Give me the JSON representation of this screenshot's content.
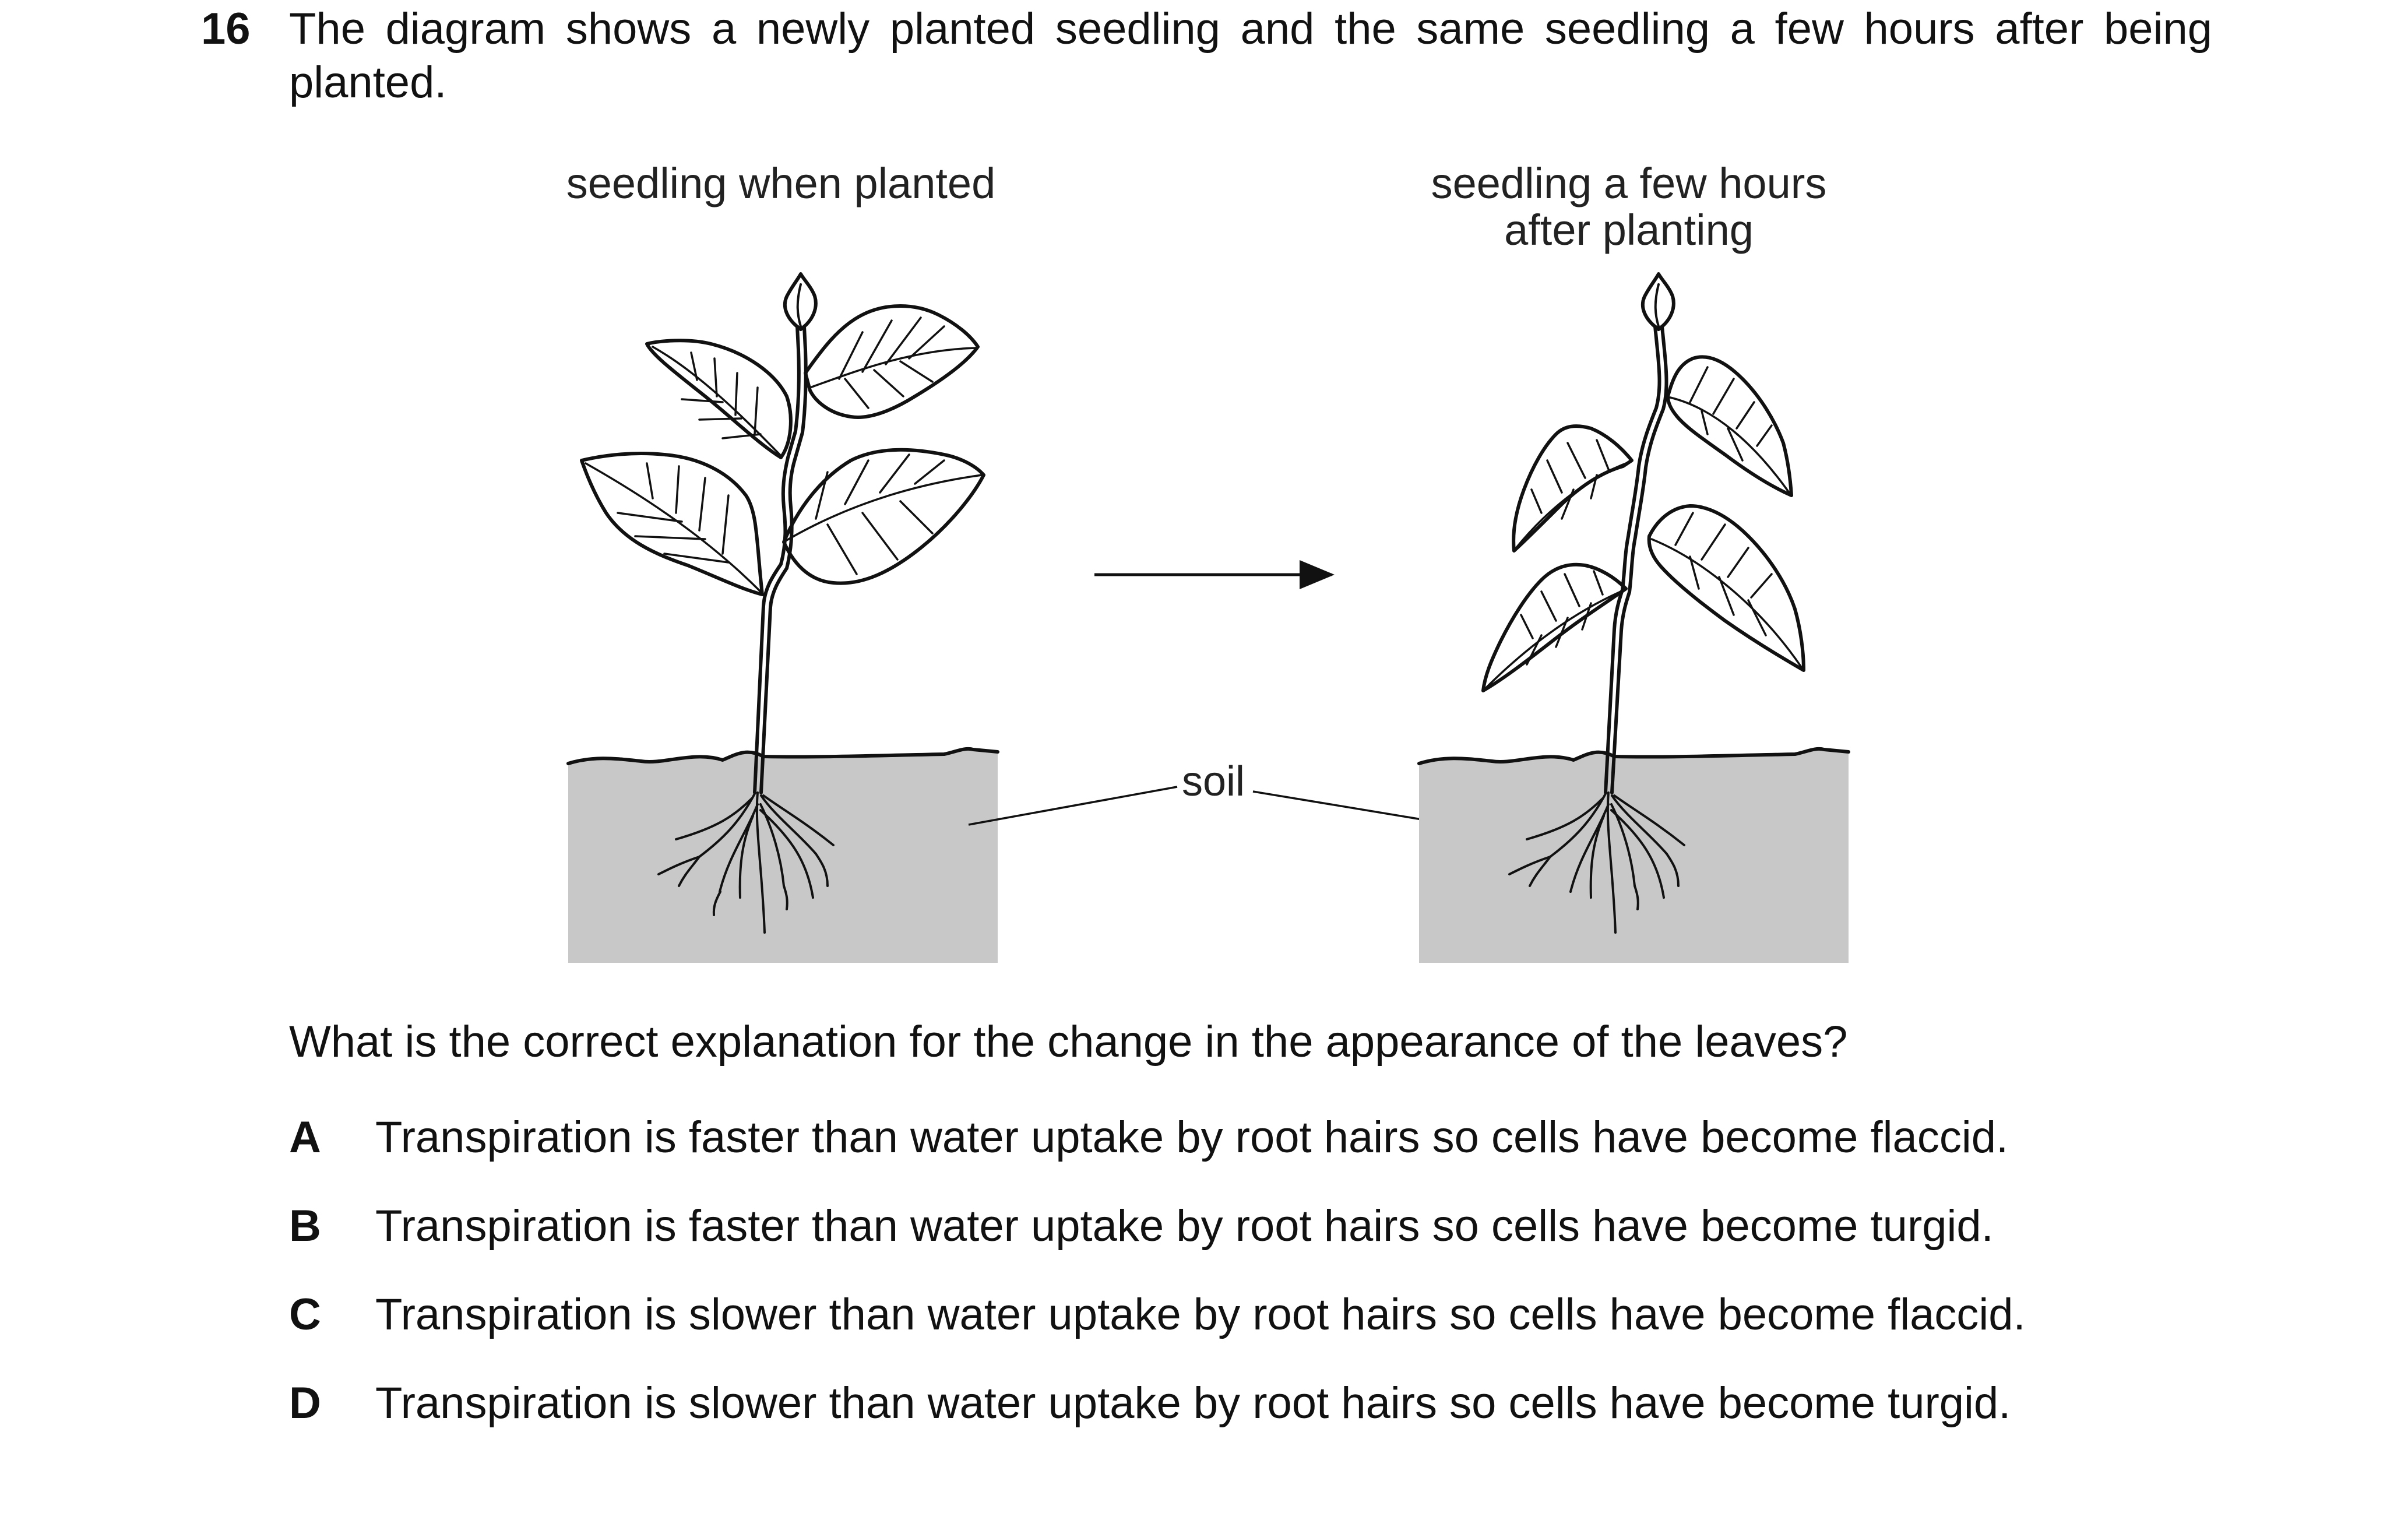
{
  "question": {
    "number": "16",
    "stem": "The diagram shows a newly planted seedling and the same seedling a few hours after being planted.",
    "prompt": "What is the correct explanation for the change in the appearance of the leaves?"
  },
  "diagram": {
    "left_label": "seedling when planted",
    "right_label_line1": "seedling a few hours",
    "right_label_line2": "after planting",
    "soil_label": "soil",
    "soil_color": "#c8c8c8",
    "line_color": "#111111"
  },
  "options": [
    {
      "letter": "A",
      "text": "Transpiration is faster than water uptake by root hairs so cells have become flaccid."
    },
    {
      "letter": "B",
      "text": "Transpiration is faster than water uptake by root hairs so cells have become turgid."
    },
    {
      "letter": "C",
      "text": "Transpiration is slower than water uptake by root hairs so cells have become flaccid."
    },
    {
      "letter": "D",
      "text": "Transpiration is slower than water uptake by root hairs so cells have become turgid."
    }
  ]
}
